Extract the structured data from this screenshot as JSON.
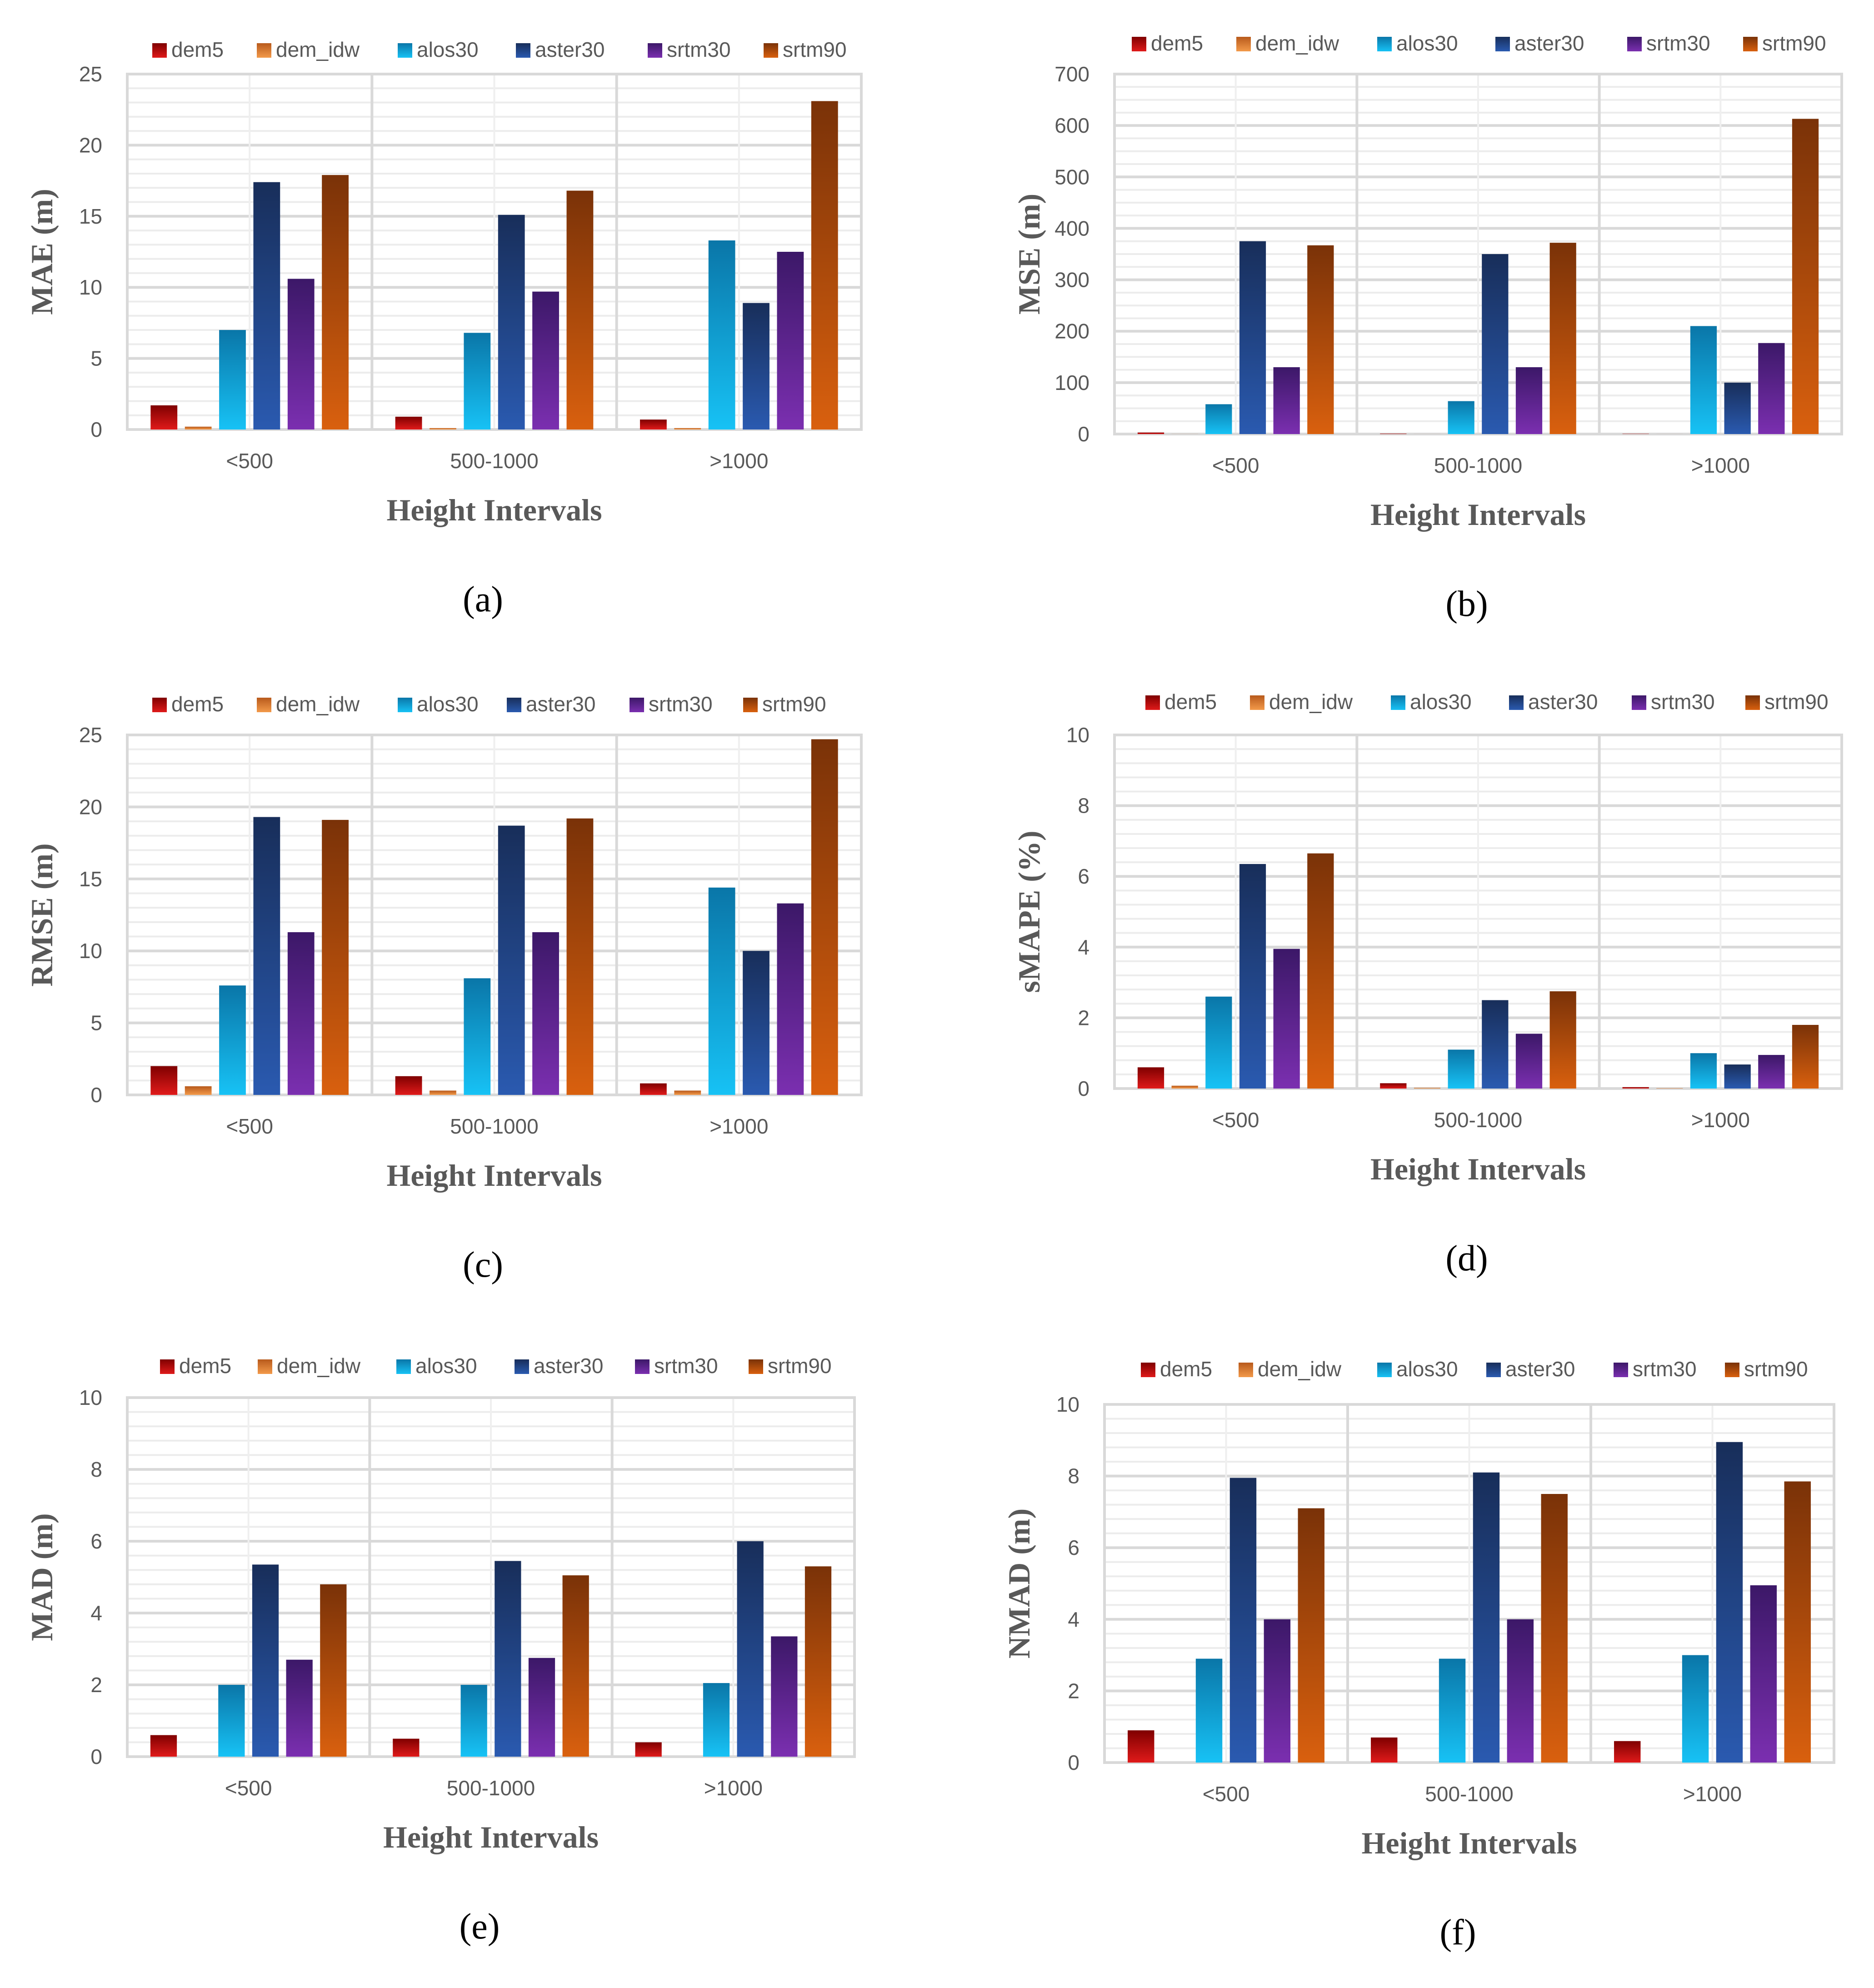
{
  "chart_data": [
    {
      "id": "a",
      "type": "bar",
      "caption": "(a)",
      "xlabel": "Height Intervals",
      "ylabel": "MAE (m)",
      "ylim": [
        0,
        25
      ],
      "yticks": [
        "0",
        "5",
        "10",
        "15",
        "20",
        "25"
      ],
      "minor_step": 1,
      "categories": [
        "<500",
        "500-1000",
        ">1000"
      ],
      "legend_position": "top",
      "series": [
        {
          "name": "dem5",
          "values": [
            1.7,
            0.9,
            0.7
          ]
        },
        {
          "name": "dem_idw",
          "values": [
            0.2,
            0.1,
            0.1
          ]
        },
        {
          "name": "alos30",
          "values": [
            7.0,
            6.8,
            13.3
          ]
        },
        {
          "name": "aster30",
          "values": [
            17.4,
            15.1,
            8.9
          ]
        },
        {
          "name": "srtm30",
          "values": [
            10.6,
            9.7,
            12.5
          ]
        },
        {
          "name": "srtm90",
          "values": [
            17.9,
            16.8,
            23.1
          ]
        }
      ]
    },
    {
      "id": "b",
      "type": "bar",
      "caption": "(b)",
      "xlabel": "Height Intervals",
      "ylabel": "MSE (m)",
      "ylim": [
        0,
        700
      ],
      "yticks": [
        "0",
        "100",
        "200",
        "300",
        "400",
        "500",
        "600",
        "700"
      ],
      "minor_step": 25,
      "categories": [
        "<500",
        "500-1000",
        ">1000"
      ],
      "legend_position": "top",
      "series": [
        {
          "name": "dem5",
          "values": [
            3,
            0.8,
            0.5
          ]
        },
        {
          "name": "dem_idw",
          "values": [
            0.1,
            0.05,
            0.05
          ]
        },
        {
          "name": "alos30",
          "values": [
            58,
            64,
            210
          ]
        },
        {
          "name": "aster30",
          "values": [
            375,
            350,
            100
          ]
        },
        {
          "name": "srtm30",
          "values": [
            130,
            130,
            177
          ]
        },
        {
          "name": "srtm90",
          "values": [
            367,
            372,
            613
          ]
        }
      ]
    },
    {
      "id": "c",
      "type": "bar",
      "caption": "(c)",
      "xlabel": "Height Intervals",
      "ylabel": "RMSE (m)",
      "ylim": [
        0,
        25
      ],
      "yticks": [
        "0",
        "5",
        "10",
        "15",
        "20",
        "25"
      ],
      "minor_step": 1,
      "categories": [
        "<500",
        "500-1000",
        ">1000"
      ],
      "legend_position": "top",
      "series": [
        {
          "name": "dem5",
          "values": [
            2.0,
            1.3,
            0.8
          ]
        },
        {
          "name": "dem_idw",
          "values": [
            0.6,
            0.3,
            0.3
          ]
        },
        {
          "name": "alos30",
          "values": [
            7.6,
            8.1,
            14.4
          ]
        },
        {
          "name": "aster30",
          "values": [
            19.3,
            18.7,
            10.0
          ]
        },
        {
          "name": "srtm30",
          "values": [
            11.3,
            11.3,
            13.3
          ]
        },
        {
          "name": "srtm90",
          "values": [
            19.1,
            19.2,
            24.7
          ]
        }
      ]
    },
    {
      "id": "d",
      "type": "bar",
      "caption": "(d)",
      "xlabel": "Height Intervals",
      "ylabel": "sMAPE (%)",
      "ylim": [
        0,
        10
      ],
      "yticks": [
        "0",
        "2",
        "4",
        "6",
        "8",
        "10"
      ],
      "minor_step": 0.4,
      "categories": [
        "<500",
        "500-1000",
        ">1000"
      ],
      "legend_position": "top",
      "series": [
        {
          "name": "dem5",
          "values": [
            0.6,
            0.15,
            0.04
          ]
        },
        {
          "name": "dem_idw",
          "values": [
            0.08,
            0.02,
            0.01
          ]
        },
        {
          "name": "alos30",
          "values": [
            2.6,
            1.1,
            1.0
          ]
        },
        {
          "name": "aster30",
          "values": [
            6.35,
            2.5,
            0.68
          ]
        },
        {
          "name": "srtm30",
          "values": [
            3.95,
            1.55,
            0.95
          ]
        },
        {
          "name": "srtm90",
          "values": [
            6.65,
            2.75,
            1.8
          ]
        }
      ]
    },
    {
      "id": "e",
      "type": "bar",
      "caption": "(e)",
      "xlabel": "Height Intervals",
      "ylabel": "MAD (m)",
      "ylim": [
        0,
        10
      ],
      "yticks": [
        "0",
        "2",
        "4",
        "6",
        "8",
        "10"
      ],
      "minor_step": 0.4,
      "categories": [
        "<500",
        "500-1000",
        ">1000"
      ],
      "legend_position": "top",
      "series": [
        {
          "name": "dem5",
          "values": [
            0.6,
            0.5,
            0.4
          ]
        },
        {
          "name": "dem_idw",
          "values": [
            0.0,
            0.0,
            0.0
          ]
        },
        {
          "name": "alos30",
          "values": [
            2.0,
            2.0,
            2.05
          ]
        },
        {
          "name": "aster30",
          "values": [
            5.35,
            5.45,
            6.0
          ]
        },
        {
          "name": "srtm30",
          "values": [
            2.7,
            2.75,
            3.35
          ]
        },
        {
          "name": "srtm90",
          "values": [
            4.8,
            5.05,
            5.3
          ]
        }
      ]
    },
    {
      "id": "f",
      "type": "bar",
      "caption": "(f)",
      "xlabel": "Height Intervals",
      "ylabel": "NMAD (m)",
      "ylim": [
        0,
        10
      ],
      "yticks": [
        "0",
        "2",
        "4",
        "6",
        "8",
        "10"
      ],
      "minor_step": 0.4,
      "categories": [
        "<500",
        "500-1000",
        ">1000"
      ],
      "legend_position": "top",
      "series": [
        {
          "name": "dem5",
          "values": [
            0.9,
            0.7,
            0.6
          ]
        },
        {
          "name": "dem_idw",
          "values": [
            0.0,
            0.0,
            0.0
          ]
        },
        {
          "name": "alos30",
          "values": [
            2.9,
            2.9,
            3.0
          ]
        },
        {
          "name": "aster30",
          "values": [
            7.95,
            8.1,
            8.95
          ]
        },
        {
          "name": "srtm30",
          "values": [
            4.0,
            4.0,
            4.95
          ]
        },
        {
          "name": "srtm90",
          "values": [
            7.1,
            7.5,
            7.85
          ]
        }
      ]
    }
  ],
  "series_colors": {
    "dem5": {
      "top": "#7f0000",
      "bottom": "#e01a1a"
    },
    "dem_idw": {
      "top": "#b85a1c",
      "bottom": "#f39a4a"
    },
    "alos30": {
      "top": "#0a76a8",
      "bottom": "#17c2f5"
    },
    "aster30": {
      "top": "#182e5a",
      "bottom": "#2a5ab0"
    },
    "srtm30": {
      "top": "#3c1868",
      "bottom": "#7b2fb0"
    },
    "srtm90": {
      "top": "#7a3208",
      "bottom": "#d9600e"
    }
  },
  "colors": {
    "grid": "#d9d9d9",
    "plot_border": "#d9d9d9",
    "axis_text": "#595959",
    "caption_text": "#000000"
  }
}
